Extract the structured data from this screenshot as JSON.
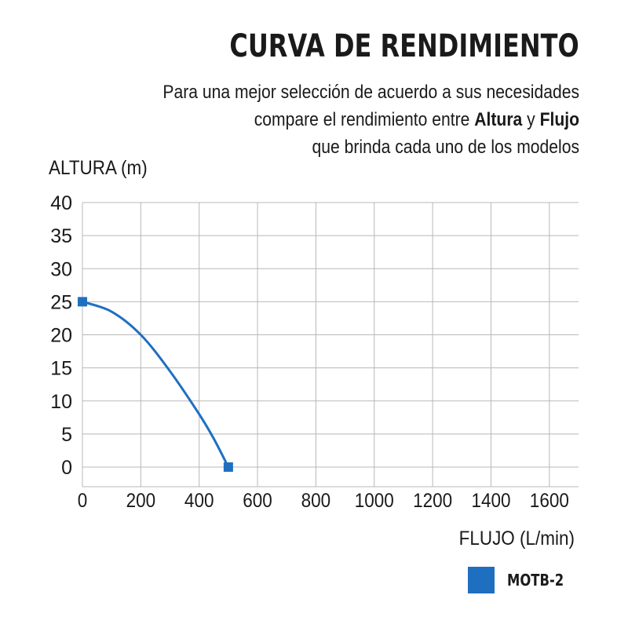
{
  "header": {
    "title": "CURVA DE RENDIMIENTO",
    "subtitle_line1": "Para una mejor selección de acuerdo a sus necesidades",
    "subtitle_line2_pre": "compare el rendimiento entre ",
    "subtitle_line2_bold1": "Altura",
    "subtitle_line2_mid": " y ",
    "subtitle_line2_bold2": "Flujo",
    "subtitle_line3": "que brinda cada uno de los modelos"
  },
  "colors": {
    "series": "#1f6fc1",
    "grid": "#b8b8b8",
    "text": "#1a1a1a"
  },
  "chart_data": {
    "type": "line",
    "xlabel": "FLUJO (L/min)",
    "ylabel": "ALTURA (m)",
    "xlim": [
      0,
      1700
    ],
    "ylim": [
      -3,
      40
    ],
    "xticks": [
      0,
      200,
      400,
      600,
      800,
      1000,
      1200,
      1400,
      1600
    ],
    "yticks": [
      0,
      5,
      10,
      15,
      20,
      25,
      30,
      35,
      40
    ],
    "grid": true,
    "legend_position": "bottom-right",
    "series": [
      {
        "name": "MOTB-2",
        "x": [
          0,
          100,
          200,
          300,
          400,
          450,
          500
        ],
        "y": [
          25,
          23.5,
          20,
          14.5,
          8,
          4.3,
          0
        ],
        "endpoints": [
          [
            0,
            25
          ],
          [
            500,
            0
          ]
        ]
      }
    ]
  }
}
